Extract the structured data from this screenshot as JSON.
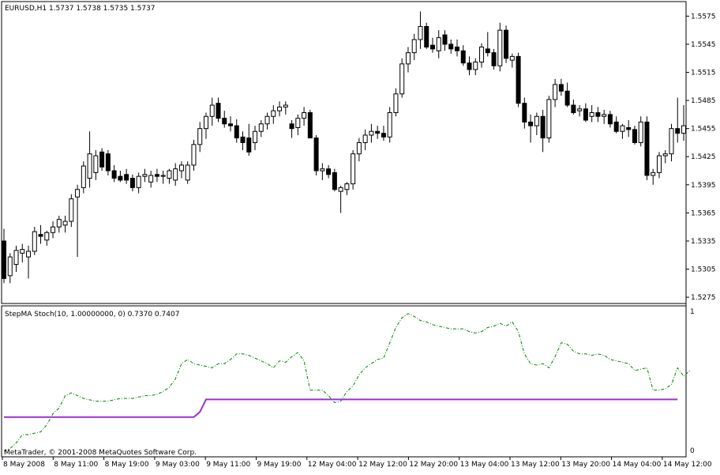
{
  "main_pane": {
    "title": "EURUSD,H1  1.5737 1.5738 1.5735 1.5737",
    "price_ticks": [
      "1.5575",
      "1.5545",
      "1.5515",
      "1.5485",
      "1.5455",
      "1.5425",
      "1.5395",
      "1.5365",
      "1.5335",
      "1.5305",
      "1.5275"
    ]
  },
  "indicator_pane": {
    "title": "StepMA Stoch(10, 1.00000000, 0) 0.7370 0.7407",
    "scale_max": "1",
    "scale_min": "0",
    "colors": {
      "stepma": "#9932cc",
      "stoch": "#008000"
    }
  },
  "footer": {
    "copyright": "MetaTrader, © 2001-2008 MetaQuotes Software Corp."
  },
  "time_axis": {
    "labels": [
      "8 May 2008",
      "8 May 11:00",
      "8 May 19:00",
      "9 May 03:00",
      "9 May 11:00",
      "9 May 19:00",
      "12 May 04:00",
      "12 May 12:00",
      "12 May 20:00",
      "13 May 04:00",
      "13 May 12:00",
      "13 May 20:00",
      "14 May 04:00",
      "14 May 12:00"
    ]
  },
  "chart_data": [
    {
      "type": "candlestick",
      "symbol": "EURUSD",
      "timeframe": "H1",
      "ylim": [
        1.527,
        1.5588
      ],
      "bars": [
        [
          1.5335,
          1.5348,
          1.529,
          1.5295
        ],
        [
          1.5298,
          1.5322,
          1.529,
          1.5318
        ],
        [
          1.531,
          1.533,
          1.5302,
          1.5325
        ],
        [
          1.5322,
          1.5332,
          1.5312,
          1.5326
        ],
        [
          1.5318,
          1.533,
          1.5295,
          1.5324
        ],
        [
          1.5324,
          1.535,
          1.532,
          1.5345
        ],
        [
          1.5342,
          1.5352,
          1.5332,
          1.534
        ],
        [
          1.5336,
          1.5346,
          1.533,
          1.5344
        ],
        [
          1.5344,
          1.5356,
          1.5338,
          1.535
        ],
        [
          1.535,
          1.5362,
          1.5344,
          1.5358
        ],
        [
          1.5352,
          1.5362,
          1.5344,
          1.5356
        ],
        [
          1.5356,
          1.5385,
          1.535,
          1.538
        ],
        [
          1.5382,
          1.5395,
          1.5318,
          1.539
        ],
        [
          1.5392,
          1.542,
          1.5386,
          1.5415
        ],
        [
          1.5402,
          1.5452,
          1.5392,
          1.5428
        ],
        [
          1.5408,
          1.5432,
          1.54,
          1.5426
        ],
        [
          1.543,
          1.5434,
          1.541,
          1.5414
        ],
        [
          1.5428,
          1.5432,
          1.5405,
          1.541
        ],
        [
          1.541,
          1.5416,
          1.5398,
          1.5402
        ],
        [
          1.5404,
          1.541,
          1.5398,
          1.54
        ],
        [
          1.5406,
          1.5412,
          1.5396,
          1.54
        ],
        [
          1.5402,
          1.5406,
          1.5388,
          1.5392
        ],
        [
          1.5392,
          1.5408,
          1.5386,
          1.5404
        ],
        [
          1.5404,
          1.5412,
          1.5398,
          1.5406
        ],
        [
          1.5398,
          1.541,
          1.5392,
          1.5405
        ],
        [
          1.5406,
          1.5412,
          1.5398,
          1.5404
        ],
        [
          1.5404,
          1.541,
          1.5396,
          1.5405
        ],
        [
          1.5402,
          1.5412,
          1.5396,
          1.541
        ],
        [
          1.54,
          1.5418,
          1.5394,
          1.5412
        ],
        [
          1.541,
          1.542,
          1.5402,
          1.5416
        ],
        [
          1.54,
          1.542,
          1.5396,
          1.5416
        ],
        [
          1.5416,
          1.5443,
          1.541,
          1.5438
        ],
        [
          1.5438,
          1.5462,
          1.543,
          1.5455
        ],
        [
          1.5455,
          1.5472,
          1.5444,
          1.5468
        ],
        [
          1.5468,
          1.5488,
          1.5458,
          1.548
        ],
        [
          1.5482,
          1.5488,
          1.5462,
          1.5466
        ],
        [
          1.5466,
          1.5474,
          1.5456,
          1.546
        ],
        [
          1.546,
          1.5468,
          1.5452,
          1.5458
        ],
        [
          1.5458,
          1.5465,
          1.544,
          1.5445
        ],
        [
          1.5446,
          1.5452,
          1.5432,
          1.544
        ],
        [
          1.5445,
          1.546,
          1.5426,
          1.543
        ],
        [
          1.544,
          1.5458,
          1.5432,
          1.5452
        ],
        [
          1.5452,
          1.5464,
          1.5446,
          1.546
        ],
        [
          1.546,
          1.5472,
          1.5454,
          1.5468
        ],
        [
          1.5468,
          1.548,
          1.546,
          1.5474
        ],
        [
          1.5474,
          1.5484,
          1.5468,
          1.5478
        ],
        [
          1.5478,
          1.5484,
          1.547,
          1.548
        ],
        [
          1.546,
          1.5464,
          1.5445,
          1.5455
        ],
        [
          1.5456,
          1.547,
          1.5448,
          1.5466
        ],
        [
          1.5466,
          1.5478,
          1.5458,
          1.5472
        ],
        [
          1.5472,
          1.5475,
          1.5455,
          1.5445
        ],
        [
          1.5445,
          1.5448,
          1.5405,
          1.541
        ],
        [
          1.541,
          1.5418,
          1.54,
          1.5412
        ],
        [
          1.5412,
          1.5416,
          1.5402,
          1.5406
        ],
        [
          1.5408,
          1.5412,
          1.5388,
          1.539
        ],
        [
          1.5388,
          1.5394,
          1.5365,
          1.5392
        ],
        [
          1.539,
          1.5398,
          1.5384,
          1.5396
        ],
        [
          1.5396,
          1.5432,
          1.539,
          1.5428
        ],
        [
          1.5428,
          1.5445,
          1.542,
          1.544
        ],
        [
          1.544,
          1.5454,
          1.5432,
          1.5448
        ],
        [
          1.5448,
          1.546,
          1.544,
          1.5452
        ],
        [
          1.5452,
          1.5458,
          1.5444,
          1.545
        ],
        [
          1.545,
          1.5458,
          1.5442,
          1.5446
        ],
        [
          1.5446,
          1.5478,
          1.544,
          1.5472
        ],
        [
          1.5472,
          1.5498,
          1.5468,
          1.5492
        ],
        [
          1.5492,
          1.553,
          1.5488,
          1.5524
        ],
        [
          1.5524,
          1.5542,
          1.5515,
          1.5536
        ],
        [
          1.5536,
          1.5556,
          1.5528,
          1.555
        ],
        [
          1.555,
          1.558,
          1.554,
          1.5564
        ],
        [
          1.5564,
          1.5568,
          1.554,
          1.5542
        ],
        [
          1.5544,
          1.5552,
          1.5536,
          1.554
        ],
        [
          1.5538,
          1.556,
          1.553,
          1.5552
        ],
        [
          1.5555,
          1.556,
          1.5538,
          1.5545
        ],
        [
          1.5545,
          1.555,
          1.5535,
          1.554
        ],
        [
          1.5542,
          1.555,
          1.5532,
          1.5538
        ],
        [
          1.5538,
          1.5544,
          1.5522,
          1.5525
        ],
        [
          1.5525,
          1.5532,
          1.5512,
          1.5518
        ],
        [
          1.5518,
          1.553,
          1.5512,
          1.5526
        ],
        [
          1.5526,
          1.5546,
          1.552,
          1.5542
        ],
        [
          1.554,
          1.5558,
          1.5532,
          1.5536
        ],
        [
          1.5536,
          1.554,
          1.5518,
          1.5522
        ],
        [
          1.5522,
          1.5568,
          1.5516,
          1.556
        ],
        [
          1.556,
          1.5565,
          1.5525,
          1.553
        ],
        [
          1.5528,
          1.5535,
          1.552,
          1.5532
        ],
        [
          1.5532,
          1.5536,
          1.5478,
          1.5482
        ],
        [
          1.5482,
          1.5488,
          1.5455,
          1.5462
        ],
        [
          1.5462,
          1.547,
          1.544,
          1.5458
        ],
        [
          1.5458,
          1.5472,
          1.5448,
          1.5468
        ],
        [
          1.5468,
          1.5475,
          1.543,
          1.5445
        ],
        [
          1.5445,
          1.549,
          1.544,
          1.5486
        ],
        [
          1.5486,
          1.5508,
          1.5478,
          1.5502
        ],
        [
          1.5502,
          1.5508,
          1.549,
          1.5495
        ],
        [
          1.5495,
          1.5504,
          1.5478,
          1.548
        ],
        [
          1.548,
          1.5486,
          1.547,
          1.5472
        ],
        [
          1.5474,
          1.548,
          1.5468,
          1.5476
        ],
        [
          1.5476,
          1.5482,
          1.5462,
          1.5464
        ],
        [
          1.5468,
          1.548,
          1.5462,
          1.5472
        ],
        [
          1.5472,
          1.5478,
          1.5462,
          1.5468
        ],
        [
          1.5468,
          1.5475,
          1.546,
          1.547
        ],
        [
          1.547,
          1.5474,
          1.5456,
          1.546
        ],
        [
          1.5462,
          1.5468,
          1.545,
          1.5452
        ],
        [
          1.5452,
          1.546,
          1.5444,
          1.5458
        ],
        [
          1.5456,
          1.5464,
          1.5446,
          1.5454
        ],
        [
          1.5454,
          1.5458,
          1.5438,
          1.544
        ],
        [
          1.544,
          1.5468,
          1.5436,
          1.5462
        ],
        [
          1.5462,
          1.5468,
          1.54,
          1.5405
        ],
        [
          1.5405,
          1.5412,
          1.5395,
          1.5408
        ],
        [
          1.5408,
          1.543,
          1.5402,
          1.5426
        ],
        [
          1.5426,
          1.5432,
          1.5418,
          1.5428
        ],
        [
          1.5428,
          1.546,
          1.542,
          1.5455
        ],
        [
          1.5455,
          1.5488,
          1.544,
          1.545
        ],
        [
          1.545,
          1.548,
          1.5442,
          1.5458
        ]
      ]
    },
    {
      "type": "line",
      "ylim": [
        0,
        1
      ],
      "series": [
        {
          "values": [
            0.246,
            0.246,
            0.246,
            0.246,
            0.246,
            0.246,
            0.246,
            0.246,
            0.246,
            0.246,
            0.246,
            0.246,
            0.246,
            0.246,
            0.246,
            0.246,
            0.246,
            0.246,
            0.246,
            0.246,
            0.246,
            0.246,
            0.246,
            0.246,
            0.246,
            0.246,
            0.246,
            0.246,
            0.246,
            0.246,
            0.246,
            0.246,
            0.283,
            0.373,
            0.373,
            0.373,
            0.373,
            0.373,
            0.373,
            0.373,
            0.373,
            0.373,
            0.373,
            0.373,
            0.373,
            0.373,
            0.373,
            0.373,
            0.373,
            0.373,
            0.373,
            0.373,
            0.373,
            0.373,
            0.373,
            0.373,
            0.373,
            0.373,
            0.373,
            0.373,
            0.373,
            0.373,
            0.373,
            0.373,
            0.373,
            0.373,
            0.373,
            0.373,
            0.373,
            0.373,
            0.373,
            0.373,
            0.373,
            0.373,
            0.373,
            0.373,
            0.373,
            0.373,
            0.373,
            0.373,
            0.373,
            0.373,
            0.373,
            0.373,
            0.373,
            0.373,
            0.373,
            0.373,
            0.373,
            0.373,
            0.373,
            0.373,
            0.373,
            0.373,
            0.373,
            0.373,
            0.373,
            0.373,
            0.373,
            0.373,
            0.373,
            0.373,
            0.373,
            0.373,
            0.373,
            0.373,
            0.373,
            0.373,
            0.373,
            0.373,
            0.373
          ]
        },
        {
          "values": [
            0.0,
            0.02,
            0.06,
            0.12,
            0.12,
            0.13,
            0.14,
            0.19,
            0.27,
            0.31,
            0.4,
            0.42,
            0.4,
            0.38,
            0.37,
            0.36,
            0.36,
            0.36,
            0.37,
            0.38,
            0.38,
            0.38,
            0.39,
            0.4,
            0.4,
            0.41,
            0.43,
            0.46,
            0.52,
            0.63,
            0.66,
            0.63,
            0.62,
            0.61,
            0.6,
            0.63,
            0.63,
            0.66,
            0.7,
            0.7,
            0.69,
            0.67,
            0.65,
            0.63,
            0.6,
            0.65,
            0.64,
            0.68,
            0.71,
            0.65,
            0.44,
            0.44,
            0.44,
            0.4,
            0.35,
            0.36,
            0.43,
            0.47,
            0.55,
            0.6,
            0.63,
            0.66,
            0.67,
            0.78,
            0.89,
            0.96,
            0.99,
            0.97,
            0.94,
            0.93,
            0.91,
            0.9,
            0.89,
            0.88,
            0.88,
            0.88,
            0.86,
            0.85,
            0.86,
            0.89,
            0.9,
            0.92,
            0.9,
            0.93,
            0.86,
            0.7,
            0.63,
            0.62,
            0.63,
            0.6,
            0.68,
            0.78,
            0.77,
            0.72,
            0.7,
            0.7,
            0.69,
            0.7,
            0.69,
            0.66,
            0.65,
            0.64,
            0.63,
            0.58,
            0.59,
            0.6,
            0.44,
            0.44,
            0.45,
            0.48,
            0.6,
            0.54,
            0.58
          ]
        }
      ]
    }
  ]
}
